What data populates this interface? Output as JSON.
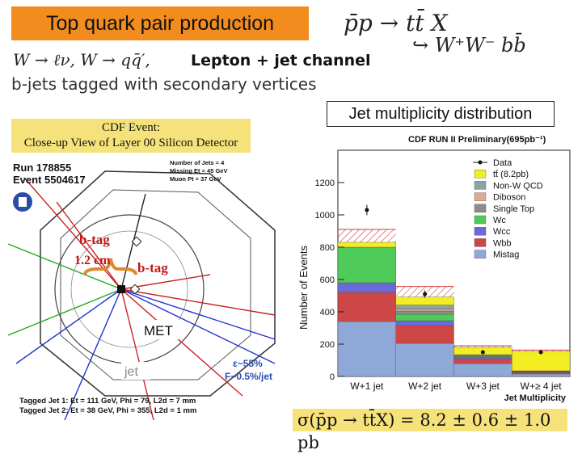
{
  "title": "Top quark pair production",
  "reaction": {
    "line1": "p̄p → tt̄ X",
    "line2": "↪ W⁺W⁻ bb̄"
  },
  "decay_modes": "W → ℓν,  W → qq̄′,",
  "lepton_jet": "Lepton + jet channel",
  "btag_text": "b-jets tagged with secondary vertices",
  "jet_mult_label": "Jet multiplicity distribution",
  "event": {
    "header_line1": "CDF Event:",
    "header_line2": "Close-up View of Layer 00 Silicon Detector",
    "run": "Run 178855",
    "event_no": "Event 5504617",
    "info": [
      "Number of Jets = 4",
      "Missing Et = 45 GeV",
      "Muon Pt = 37 GeV"
    ],
    "btag1": "b-tag",
    "btag2": "b-tag",
    "dist": "1.2 cm",
    "met": "MET",
    "jet": "jet",
    "eff1": "ε~55%",
    "eff2": "F~0.5%/jet",
    "tagged1": "Tagged Jet 1: Et = 111 GeV, Phi = 79,   L2d = 7 mm",
    "tagged2": "Tagged Jet 2: Et = 38 GeV,   Phi = 355, L2d = 1 mm"
  },
  "formula": "σ(p̄p → tt̄X) = 8.2 ± 0.6 ± 1.0 pb",
  "chart_data": {
    "type": "bar",
    "stacked": true,
    "title": "CDF RUN II Preliminary(695pb⁻¹)",
    "ylabel": "Number of Events",
    "xlabel": "Jet Multiplicity",
    "categories": [
      "W+1 jet",
      "W+2 jet",
      "W+3 jet",
      "W+≥ 4 jet"
    ],
    "ylim": [
      0,
      1400
    ],
    "yticks": [
      0,
      200,
      400,
      600,
      800,
      1000,
      1200
    ],
    "legend_position": "top-right",
    "series": [
      {
        "name": "Mistag",
        "color": "#8fa8d8",
        "values": [
          340,
          205,
          80,
          15
        ]
      },
      {
        "name": "Wbb",
        "color": "#cf4646",
        "values": [
          180,
          110,
          30,
          10
        ]
      },
      {
        "name": "Wcc",
        "color": "#6b6bd8",
        "values": [
          60,
          30,
          8,
          3
        ]
      },
      {
        "name": "Wc",
        "color": "#4ecb58",
        "values": [
          220,
          40,
          5,
          2
        ]
      },
      {
        "name": "Single Top",
        "color": "#8c8c8c",
        "values": [
          0,
          20,
          5,
          2
        ]
      },
      {
        "name": "Diboson",
        "color": "#e0a98b",
        "values": [
          0,
          12,
          2,
          1
        ]
      },
      {
        "name": "Non-W QCD",
        "color": "#8aa4a4",
        "values": [
          0,
          25,
          5,
          2
        ]
      },
      {
        "name": "tt̄ (8.2pb)",
        "color": "#f2ee22",
        "values": [
          30,
          50,
          45,
          120
        ]
      }
    ],
    "uncertainty_band": [
      80,
      65,
      10,
      8
    ],
    "data": {
      "name": "Data",
      "values": [
        1030,
        510,
        150,
        150
      ],
      "errors": [
        32,
        23,
        12,
        12
      ]
    }
  }
}
